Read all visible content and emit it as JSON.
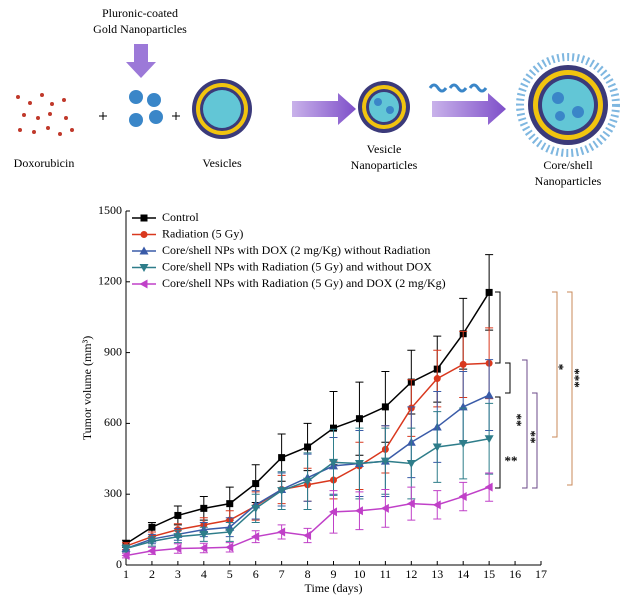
{
  "schematic": {
    "labels": [
      {
        "lines": [
          "Pluronic-coated",
          "Gold Nanoparticles"
        ]
      },
      {
        "lines": [
          "Doxorubicin"
        ]
      },
      {
        "lines": [
          "Vesicles"
        ]
      },
      {
        "lines": [
          "Vesicle",
          "Nanoparticles"
        ]
      },
      {
        "lines": [
          "Core/shell",
          "Nanoparticles"
        ]
      }
    ]
  },
  "chart_data": {
    "type": "line",
    "xlabel": "Time (days)",
    "ylabel": "Tumor volume (mm³)",
    "xlim": [
      1,
      17
    ],
    "xticks": [
      1,
      2,
      3,
      4,
      5,
      6,
      7,
      8,
      9,
      10,
      11,
      12,
      13,
      14,
      15,
      16,
      17
    ],
    "ylim": [
      0,
      1500
    ],
    "yticks": [
      0,
      300,
      600,
      900,
      1200,
      1500
    ],
    "legend": "upper left",
    "x": [
      1,
      2,
      3,
      4,
      5,
      6,
      7,
      8,
      9,
      10,
      11,
      12,
      13,
      14,
      15
    ],
    "series": [
      {
        "name": "Control",
        "color": "#000000",
        "marker": "square",
        "values": [
          90,
          160,
          210,
          240,
          260,
          345,
          455,
          500,
          580,
          620,
          670,
          775,
          830,
          980,
          1155
        ],
        "errors": [
          15,
          20,
          40,
          50,
          70,
          80,
          100,
          100,
          155,
          155,
          150,
          135,
          140,
          150,
          160
        ]
      },
      {
        "name": "Radiation (5 Gy)",
        "color": "#d9381e",
        "marker": "circle",
        "values": [
          80,
          120,
          150,
          170,
          190,
          250,
          320,
          340,
          360,
          420,
          490,
          665,
          790,
          850,
          855
        ],
        "errors": [
          15,
          20,
          25,
          30,
          40,
          60,
          60,
          70,
          80,
          100,
          100,
          120,
          120,
          140,
          150
        ]
      },
      {
        "name": "Core/shell NPs with DOX (2 mg/Kg) without Radiation",
        "color": "#3a5ba8",
        "marker": "triangle-up",
        "values": [
          70,
          110,
          130,
          150,
          160,
          255,
          320,
          370,
          420,
          430,
          440,
          520,
          585,
          670,
          720
        ],
        "errors": [
          15,
          20,
          25,
          30,
          40,
          60,
          70,
          100,
          120,
          140,
          150,
          150,
          150,
          150,
          150
        ]
      },
      {
        "name": "Core/shell NPs with Radiation (5 Gy) and without DOX",
        "color": "#2e7d8a",
        "marker": "triangle-down",
        "values": [
          70,
          100,
          120,
          130,
          140,
          240,
          315,
          355,
          435,
          430,
          440,
          430,
          500,
          515,
          535
        ],
        "errors": [
          15,
          20,
          25,
          30,
          40,
          60,
          80,
          120,
          140,
          150,
          140,
          150,
          150,
          150,
          150
        ]
      },
      {
        "name": "Core/shell NPs with Radiation (5 Gy) and DOX (2 mg/Kg)",
        "color": "#c040c8",
        "marker": "triangle-left",
        "values": [
          40,
          60,
          70,
          72,
          75,
          120,
          140,
          125,
          225,
          230,
          240,
          260,
          255,
          290,
          330
        ],
        "errors": [
          10,
          15,
          20,
          20,
          20,
          25,
          30,
          30,
          90,
          80,
          80,
          70,
          60,
          60,
          60
        ]
      }
    ],
    "annotations": [
      "**",
      "**",
      "**",
      "*",
      "***"
    ]
  }
}
